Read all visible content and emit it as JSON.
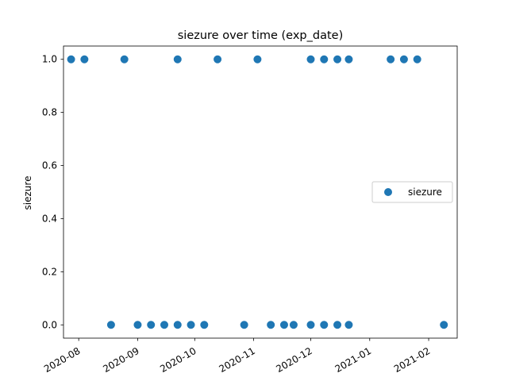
{
  "chart_data": {
    "type": "scatter",
    "title": "siezure over time (exp_date)",
    "xlabel": "",
    "ylabel": "siezure",
    "x_kind": "date",
    "xlim": [
      "2020-07-24",
      "2021-02-16"
    ],
    "ylim": [
      -0.05,
      1.05
    ],
    "x_ticks": [
      {
        "value": "2020-08-01",
        "label": "2020-08"
      },
      {
        "value": "2020-09-01",
        "label": "2020-09"
      },
      {
        "value": "2020-10-01",
        "label": "2020-10"
      },
      {
        "value": "2020-11-01",
        "label": "2020-11"
      },
      {
        "value": "2020-12-01",
        "label": "2020-12"
      },
      {
        "value": "2021-01-01",
        "label": "2021-01"
      },
      {
        "value": "2021-02-01",
        "label": "2021-02"
      }
    ],
    "y_ticks": [
      {
        "value": 0.0,
        "label": "0.0"
      },
      {
        "value": 0.2,
        "label": "0.2"
      },
      {
        "value": 0.4,
        "label": "0.4"
      },
      {
        "value": 0.6,
        "label": "0.6"
      },
      {
        "value": 0.8,
        "label": "0.8"
      },
      {
        "value": 1.0,
        "label": "1.0"
      }
    ],
    "grid": false,
    "legend_position": "right",
    "series": [
      {
        "name": "siezure",
        "color": "#1f77b4",
        "marker": "circle",
        "points": [
          {
            "x": "2020-07-28",
            "y": 1
          },
          {
            "x": "2020-08-04",
            "y": 1
          },
          {
            "x": "2020-08-18",
            "y": 0
          },
          {
            "x": "2020-08-25",
            "y": 1
          },
          {
            "x": "2020-09-01",
            "y": 0
          },
          {
            "x": "2020-09-08",
            "y": 0
          },
          {
            "x": "2020-09-15",
            "y": 0
          },
          {
            "x": "2020-09-22",
            "y": 0
          },
          {
            "x": "2020-09-22",
            "y": 1
          },
          {
            "x": "2020-09-29",
            "y": 0
          },
          {
            "x": "2020-10-06",
            "y": 0
          },
          {
            "x": "2020-10-13",
            "y": 1
          },
          {
            "x": "2020-10-27",
            "y": 0
          },
          {
            "x": "2020-11-03",
            "y": 1
          },
          {
            "x": "2020-11-10",
            "y": 0
          },
          {
            "x": "2020-11-17",
            "y": 0
          },
          {
            "x": "2020-11-22",
            "y": 0
          },
          {
            "x": "2020-12-01",
            "y": 0
          },
          {
            "x": "2020-12-01",
            "y": 1
          },
          {
            "x": "2020-12-08",
            "y": 0
          },
          {
            "x": "2020-12-08",
            "y": 1
          },
          {
            "x": "2020-12-15",
            "y": 0
          },
          {
            "x": "2020-12-15",
            "y": 1
          },
          {
            "x": "2020-12-21",
            "y": 0
          },
          {
            "x": "2020-12-21",
            "y": 1
          },
          {
            "x": "2021-01-12",
            "y": 1
          },
          {
            "x": "2021-01-19",
            "y": 1
          },
          {
            "x": "2021-01-26",
            "y": 1
          },
          {
            "x": "2021-02-09",
            "y": 0
          }
        ]
      }
    ]
  }
}
